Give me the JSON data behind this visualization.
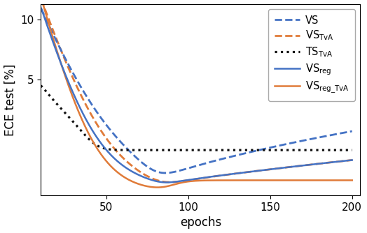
{
  "blue_color": "#4472C4",
  "orange_color": "#E07B39",
  "black_color": "#111111",
  "xlim": [
    10,
    205
  ],
  "ylim_log": [
    1.3,
    12.0
  ],
  "xlabel": "epochs",
  "ylabel": "ECE test [%]",
  "yticks": [
    5,
    10
  ],
  "xticks": [
    50,
    100,
    150,
    200
  ],
  "figsize": [
    5.24,
    3.34
  ],
  "dpi": 100
}
